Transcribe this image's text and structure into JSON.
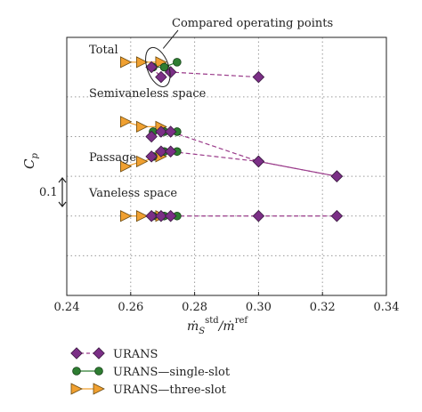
{
  "chart_data": {
    "type": "line",
    "xlabel": "ṁ_S^std / ṁ^ref",
    "xlabel_parts": {
      "main": "ṁ",
      "sub": "S",
      "sup": "std",
      "sep": "/ṁ",
      "sup2": "ref"
    },
    "ylabel": "C",
    "ylabel_sub": "p",
    "xlim": [
      0.24,
      0.34
    ],
    "x_ticks": [
      "0.24",
      "0.26",
      "0.28",
      "0.30",
      "0.32",
      "0.34"
    ],
    "grid": true,
    "scale_bar_label": "0.1",
    "annotation": "Compared operating points",
    "colors": {
      "urans": "#7b2f86",
      "single": "#2e7d32",
      "three": "#f0a030",
      "line": "#9a3b8a",
      "grid": "#9a9a9a"
    },
    "regions": [
      {
        "label": "Total",
        "urans": [
          [
            0.2665,
            0.5
          ],
          [
            0.2695,
            0.48
          ],
          [
            0.2725,
            0.49
          ],
          [
            0.3,
            0.48
          ]
        ],
        "single": [
          [
            0.267,
            0.5
          ],
          [
            0.2705,
            0.5
          ],
          [
            0.2745,
            0.51
          ]
        ],
        "three": [
          [
            0.2585,
            0.51
          ],
          [
            0.2635,
            0.51
          ],
          [
            0.2695,
            0.51
          ]
        ]
      },
      {
        "label": "Semivaneless space",
        "urans": [
          [
            0.2665,
            0.36
          ],
          [
            0.2695,
            0.37
          ],
          [
            0.2725,
            0.37
          ],
          [
            0.3,
            0.31
          ],
          [
            0.3245,
            0.28
          ]
        ],
        "single": [
          [
            0.267,
            0.37
          ],
          [
            0.2705,
            0.37
          ],
          [
            0.2745,
            0.37
          ]
        ],
        "three": [
          [
            0.2585,
            0.39
          ],
          [
            0.2635,
            0.38
          ],
          [
            0.2695,
            0.38
          ]
        ]
      },
      {
        "label": "Passage",
        "urans": [
          [
            0.2665,
            0.32
          ],
          [
            0.2695,
            0.33
          ],
          [
            0.2725,
            0.33
          ],
          [
            0.3,
            0.31
          ],
          [
            0.3245,
            0.28
          ]
        ],
        "single": [
          [
            0.267,
            0.32
          ],
          [
            0.2705,
            0.33
          ],
          [
            0.2745,
            0.33
          ]
        ],
        "three": [
          [
            0.2585,
            0.3
          ],
          [
            0.2635,
            0.31
          ],
          [
            0.2695,
            0.32
          ]
        ]
      },
      {
        "label": "Vaneless space",
        "urans": [
          [
            0.2665,
            0.2
          ],
          [
            0.2695,
            0.2
          ],
          [
            0.2725,
            0.2
          ],
          [
            0.3,
            0.2
          ],
          [
            0.3245,
            0.2
          ]
        ],
        "single": [
          [
            0.267,
            0.2
          ],
          [
            0.2705,
            0.2
          ],
          [
            0.2745,
            0.2
          ]
        ],
        "three": [
          [
            0.2585,
            0.2
          ],
          [
            0.2635,
            0.2
          ],
          [
            0.2695,
            0.2
          ]
        ]
      }
    ],
    "legend": [
      {
        "key": "urans",
        "label": "URANS"
      },
      {
        "key": "single",
        "label": "URANS—single-slot"
      },
      {
        "key": "three",
        "label": "URANS—three-slot"
      }
    ]
  }
}
